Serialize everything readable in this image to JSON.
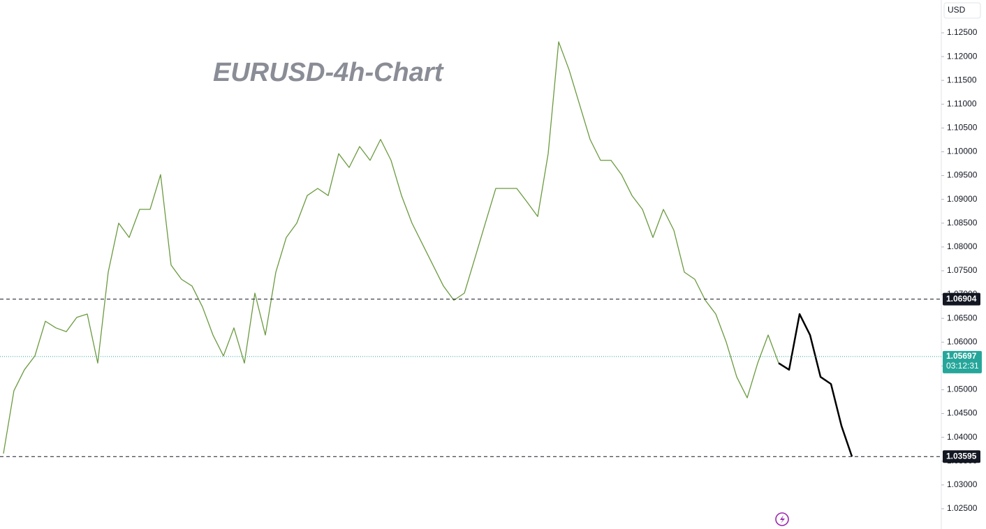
{
  "chart_data": {
    "type": "line",
    "title": "EURUSD-4h-Chart",
    "currency": "USD",
    "x": [
      0,
      1,
      2,
      3,
      4,
      5,
      6,
      7,
      8,
      9,
      10,
      11,
      12,
      13,
      14,
      15,
      16,
      17,
      18,
      19,
      20,
      21,
      22,
      23,
      24,
      25,
      26,
      27,
      28,
      29,
      30,
      31,
      32,
      33,
      34,
      35,
      36,
      37,
      38,
      39,
      40,
      41,
      42,
      43,
      44,
      45,
      46,
      47,
      48,
      49,
      50,
      51,
      52,
      53,
      54,
      55,
      56,
      57,
      58,
      59,
      60,
      61,
      62,
      63,
      64,
      65,
      66,
      67,
      68,
      69,
      70,
      71,
      72,
      73,
      74,
      75,
      76,
      77,
      78,
      79,
      80,
      81
    ],
    "series": [
      {
        "color": "#6a9a3f",
        "values": [
          1.0366,
          1.0498,
          1.0542,
          1.0571,
          1.0644,
          1.063,
          1.0622,
          1.0652,
          1.0659,
          1.0556,
          1.0747,
          1.085,
          1.082,
          1.0879,
          1.0879,
          1.0952,
          1.0762,
          1.0732,
          1.0718,
          1.0674,
          1.0615,
          1.0571,
          1.063,
          1.0556,
          1.0703,
          1.0615,
          1.0747,
          1.082,
          1.085,
          1.0908,
          1.0923,
          1.0908,
          1.0996,
          1.0967,
          1.1011,
          1.0982,
          1.1026,
          1.0982,
          1.0908,
          1.085,
          1.0806,
          1.0762,
          1.0718,
          1.0688,
          1.0703,
          1.0776,
          1.085,
          1.0923,
          1.0923,
          1.0923,
          1.0894,
          1.0864,
          1.0996,
          1.1231,
          1.1172,
          1.1099,
          1.1026,
          1.0982,
          1.0982,
          1.0952,
          1.0908,
          1.0879,
          1.082,
          1.0879,
          1.0835,
          1.0747,
          1.0732,
          1.0688,
          1.0659,
          1.06,
          1.0527,
          1.0483,
          1.0556,
          1.0615,
          1.0556,
          null,
          null,
          null,
          null,
          null,
          null,
          null
        ]
      },
      {
        "color": "#000000",
        "values": [
          null,
          null,
          null,
          null,
          null,
          null,
          null,
          null,
          null,
          null,
          null,
          null,
          null,
          null,
          null,
          null,
          null,
          null,
          null,
          null,
          null,
          null,
          null,
          null,
          null,
          null,
          null,
          null,
          null,
          null,
          null,
          null,
          null,
          null,
          null,
          null,
          null,
          null,
          null,
          null,
          null,
          null,
          null,
          null,
          null,
          null,
          null,
          null,
          null,
          null,
          null,
          null,
          null,
          null,
          null,
          null,
          null,
          null,
          null,
          null,
          null,
          null,
          null,
          null,
          null,
          null,
          null,
          null,
          null,
          null,
          null,
          null,
          null,
          null,
          1.0556,
          1.0542,
          1.0659,
          1.0615,
          1.0527,
          1.0512,
          1.0424,
          1.03595
        ]
      }
    ],
    "xlim": [
      -0.33,
      89.53
    ],
    "ylim": [
      1.02074,
      1.13189
    ],
    "yticks": [
      {
        "value": 1.025,
        "label": "1.02500"
      },
      {
        "value": 1.03,
        "label": "1.03000"
      },
      {
        "value": 1.035,
        "label": "1.03500"
      },
      {
        "value": 1.04,
        "label": "1.04000"
      },
      {
        "value": 1.045,
        "label": "1.04500"
      },
      {
        "value": 1.05,
        "label": "1.05000"
      },
      {
        "value": 1.055,
        "label": "1.05500"
      },
      {
        "value": 1.06,
        "label": "1.06000"
      },
      {
        "value": 1.065,
        "label": "1.06500"
      },
      {
        "value": 1.07,
        "label": "1.07000"
      },
      {
        "value": 1.075,
        "label": "1.07500"
      },
      {
        "value": 1.08,
        "label": "1.08000"
      },
      {
        "value": 1.085,
        "label": "1.08500"
      },
      {
        "value": 1.09,
        "label": "1.09000"
      },
      {
        "value": 1.095,
        "label": "1.09500"
      },
      {
        "value": 1.1,
        "label": "1.10000"
      },
      {
        "value": 1.105,
        "label": "1.10500"
      },
      {
        "value": 1.11,
        "label": "1.11000"
      },
      {
        "value": 1.115,
        "label": "1.11500"
      },
      {
        "value": 1.12,
        "label": "1.12000"
      },
      {
        "value": 1.125,
        "label": "1.12500"
      }
    ],
    "levels": [
      1.06904,
      1.03595
    ],
    "current_price": 1.05697,
    "current_color": "#26a69a",
    "countdown": "03:12:31"
  }
}
